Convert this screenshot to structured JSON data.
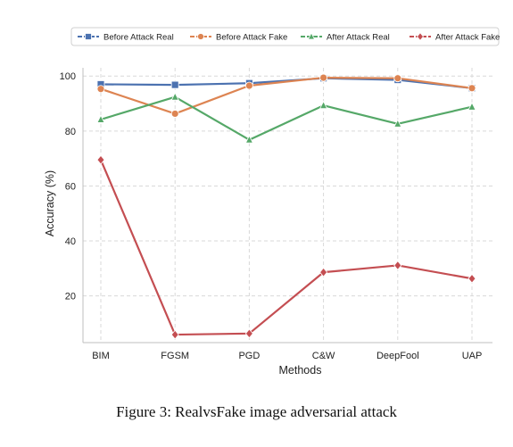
{
  "caption": "Figure 3: RealvsFake image adversarial attack",
  "chart_data": {
    "type": "line",
    "categories": [
      "BIM",
      "FGSM",
      "PGD",
      "C&W",
      "DeepFool",
      "UAP"
    ],
    "xlabel": "Methods",
    "ylabel": "Accuracy (%)",
    "ylim": [
      3,
      103
    ],
    "yticks": [
      20,
      40,
      60,
      80,
      100
    ],
    "grid": true,
    "legend_position": "top",
    "series": [
      {
        "name": "Before Attack Real",
        "color": "#4c72b0",
        "marker": "square",
        "values": [
          97.0,
          96.8,
          97.4,
          99.2,
          98.6,
          95.6
        ]
      },
      {
        "name": "Before Attack Fake",
        "color": "#dd8452",
        "marker": "circle",
        "values": [
          95.3,
          86.3,
          96.5,
          99.4,
          99.2,
          95.6
        ]
      },
      {
        "name": "After Attack Real",
        "color": "#55a868",
        "marker": "triangle",
        "values": [
          84.2,
          92.4,
          76.8,
          89.3,
          82.6,
          88.8
        ]
      },
      {
        "name": "After Attack Fake",
        "color": "#c44e52",
        "marker": "diamond",
        "values": [
          69.5,
          5.9,
          6.3,
          28.6,
          31.1,
          26.3
        ]
      }
    ]
  }
}
